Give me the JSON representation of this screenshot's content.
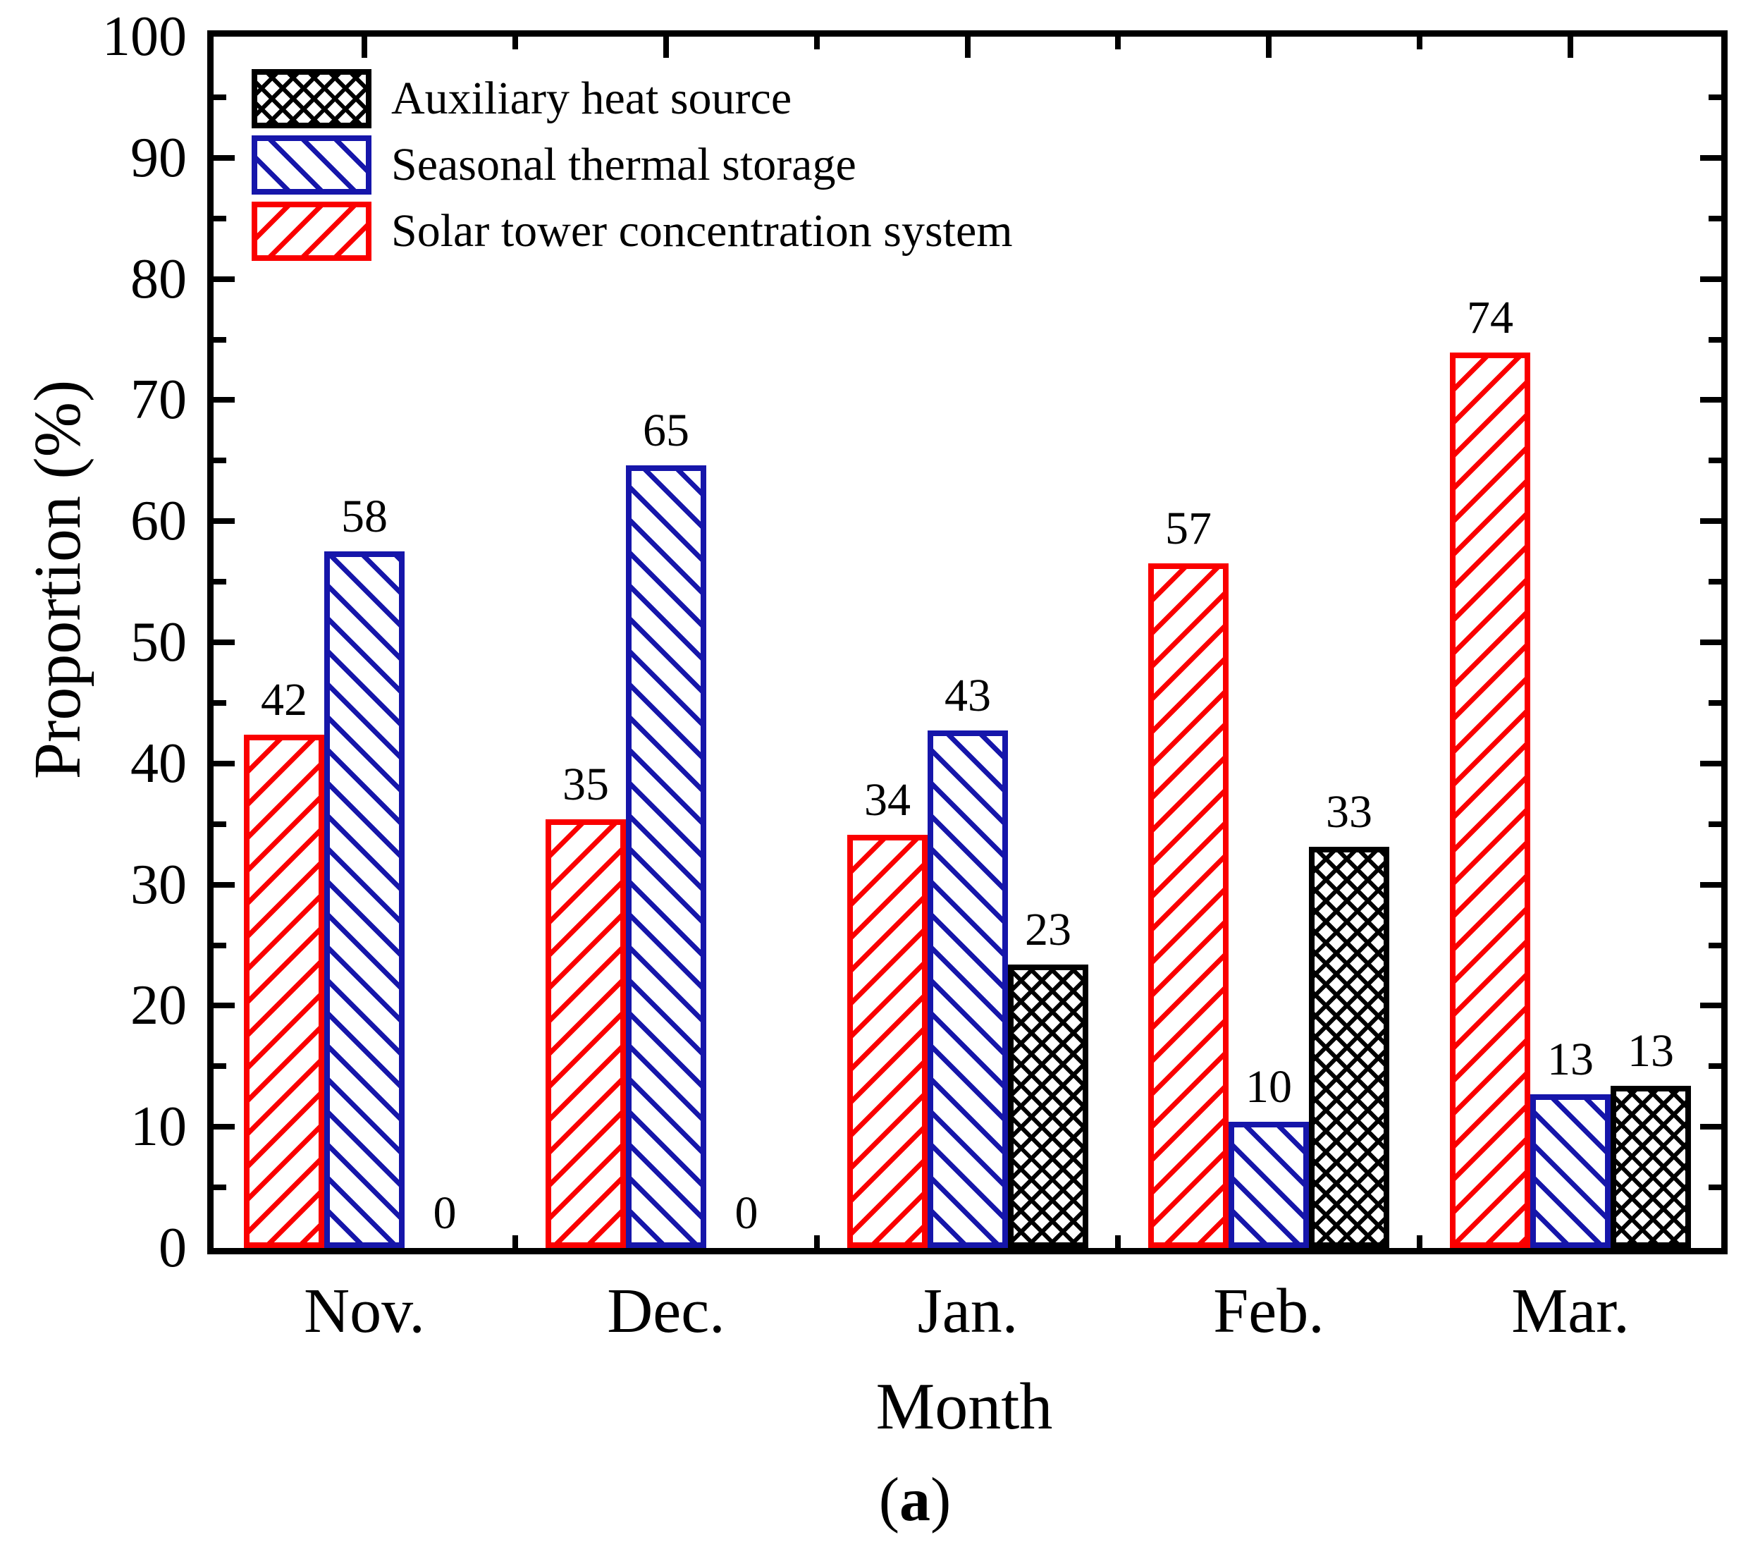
{
  "colors": {
    "solar_red": "#FA0000",
    "storage_blue": "#1616AA",
    "auxiliary_black": "#000000",
    "background": "#FFFFFF"
  },
  "axes": {
    "y_title": "Proportion (%)",
    "x_title": "Month",
    "y_min": 0,
    "y_max": 100,
    "y_major_ticks": [
      0,
      10,
      20,
      30,
      40,
      50,
      60,
      70,
      80,
      90,
      100
    ],
    "y_minor_step": 5
  },
  "legend": [
    {
      "label": "Auxiliary heat source",
      "swatch": "black"
    },
    {
      "label": "Seasonal thermal storage",
      "swatch": "blue"
    },
    {
      "label": "Solar tower concentration system",
      "swatch": "red"
    }
  ],
  "panel": {
    "open": "(",
    "letter": "a",
    "close": ")"
  },
  "chart_data": {
    "type": "bar",
    "title": "",
    "xlabel": "Month",
    "ylabel": "Proportion (%)",
    "ylim": [
      0,
      100
    ],
    "grid": false,
    "legend_position": "upper-left-inside",
    "categories": [
      "Nov.",
      "Dec.",
      "Jan.",
      "Feb.",
      "Mar."
    ],
    "series": [
      {
        "name": "Solar tower concentration system",
        "css": "red",
        "hatch": "/",
        "values": [
          42,
          35,
          34,
          57,
          74
        ],
        "bar_heights_pct": [
          42.4,
          35.4,
          34.1,
          56.5,
          73.9
        ]
      },
      {
        "name": "Seasonal thermal storage",
        "css": "blue",
        "hatch": "\\",
        "values": [
          58,
          65,
          43,
          10,
          13
        ],
        "bar_heights_pct": [
          57.5,
          64.6,
          42.7,
          10.4,
          12.7
        ]
      },
      {
        "name": "Auxiliary heat source",
        "css": "black",
        "hatch": "xx",
        "values": [
          0,
          0,
          23,
          33,
          13
        ],
        "bar_heights_pct": [
          0,
          0,
          23.4,
          33.1,
          13.4
        ]
      }
    ],
    "bar_value_labels_shown": true
  }
}
